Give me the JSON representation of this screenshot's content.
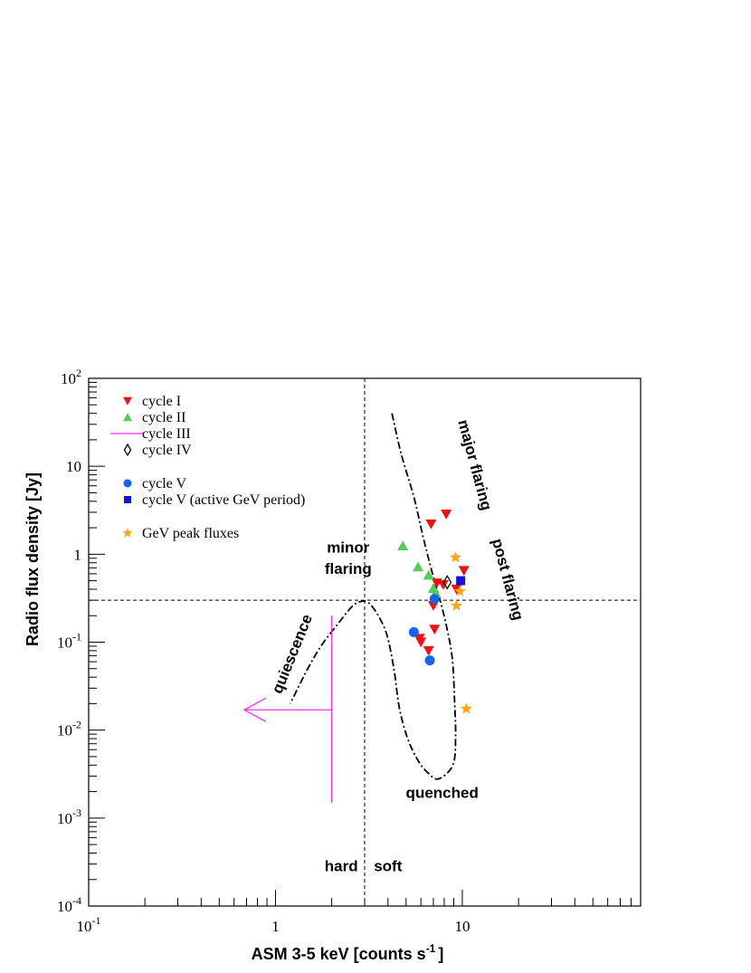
{
  "chart_data": {
    "type": "scatter",
    "xlabel": "ASM 3-5 keV [counts s",
    "xlabel_superscript": "-1",
    "xlabel_suffix": "]",
    "ylabel": "Radio flux density [Jy]",
    "x_scale": "log",
    "y_scale": "log",
    "xlim": [
      0.1,
      90
    ],
    "ylim": [
      0.0001,
      100
    ],
    "grid": false,
    "legend_position": "top-left",
    "x_ticks": [
      {
        "value": 0.1,
        "base": "10",
        "exp": "-1"
      },
      {
        "value": 1,
        "base": "1",
        "exp": ""
      },
      {
        "value": 10,
        "base": "10",
        "exp": ""
      }
    ],
    "y_ticks": [
      {
        "value": 0.0001,
        "base": "10",
        "exp": "-4"
      },
      {
        "value": 0.001,
        "base": "10",
        "exp": "-3"
      },
      {
        "value": 0.01,
        "base": "10",
        "exp": "-2"
      },
      {
        "value": 0.1,
        "base": "10",
        "exp": "-1"
      },
      {
        "value": 1,
        "base": "1",
        "exp": ""
      },
      {
        "value": 10,
        "base": "10",
        "exp": ""
      },
      {
        "value": 100,
        "base": "10",
        "exp": "2"
      }
    ],
    "reference_lines": {
      "x": 3.0,
      "y": 0.3
    },
    "series": [
      {
        "name": "cycle I",
        "marker": "triangle-down",
        "color": "#ee1111",
        "points": [
          [
            6.8,
            2.2
          ],
          [
            8.2,
            2.85
          ],
          [
            7.3,
            0.47
          ],
          [
            7.9,
            0.45
          ],
          [
            9.3,
            0.4
          ],
          [
            10.2,
            0.65
          ],
          [
            7.0,
            0.26
          ],
          [
            5.9,
            0.11
          ],
          [
            6.0,
            0.1
          ],
          [
            7.1,
            0.14
          ],
          [
            6.6,
            0.08
          ]
        ]
      },
      {
        "name": "cycle II",
        "marker": "triangle-up",
        "color": "#55cc55",
        "points": [
          [
            4.8,
            1.25
          ],
          [
            5.8,
            0.72
          ],
          [
            6.6,
            0.58
          ],
          [
            7.0,
            0.41
          ],
          [
            7.2,
            0.36
          ]
        ]
      },
      {
        "name": "cycle III",
        "marker": "limit-arrows",
        "color": "#ee33ee",
        "points": [
          [
            2.0,
            0.017
          ]
        ],
        "x_extent": [
          0.68,
          2.0
        ],
        "y_extent": [
          0.0015,
          0.2
        ]
      },
      {
        "name": "cycle IV",
        "marker": "diamond-open",
        "color": "#000000",
        "points": [
          [
            8.3,
            0.48
          ]
        ]
      },
      {
        "name": "cycle V",
        "marker": "circle",
        "color": "#1166ee",
        "points": [
          [
            7.1,
            0.31
          ],
          [
            5.5,
            0.13
          ],
          [
            6.7,
            0.062
          ]
        ]
      },
      {
        "name": "cycle V (active GeV period)",
        "marker": "square",
        "color": "#1111dd",
        "points": [
          [
            9.8,
            0.5
          ]
        ]
      },
      {
        "name": "GeV peak fluxes",
        "marker": "star",
        "color": "#ffa31a",
        "points": [
          [
            9.2,
            0.92
          ],
          [
            9.7,
            0.38
          ],
          [
            9.3,
            0.26
          ],
          [
            10.5,
            0.0175
          ]
        ]
      }
    ],
    "track": {
      "style": "dash-dot",
      "points": [
        [
          4.2,
          40
        ],
        [
          4.7,
          14
        ],
        [
          5.5,
          4.5
        ],
        [
          6.2,
          1.5
        ],
        [
          7.0,
          0.55
        ],
        [
          7.9,
          0.22
        ],
        [
          8.8,
          0.07
        ],
        [
          9.1,
          0.02
        ],
        [
          9.2,
          0.008
        ],
        [
          8.9,
          0.004
        ],
        [
          7.5,
          0.0028
        ],
        [
          6.6,
          0.0032
        ],
        [
          5.8,
          0.0045
        ],
        [
          5.1,
          0.008
        ],
        [
          4.6,
          0.018
        ],
        [
          4.3,
          0.05
        ],
        [
          3.95,
          0.12
        ],
        [
          3.55,
          0.2
        ],
        [
          3.15,
          0.28
        ],
        [
          2.85,
          0.29
        ],
        [
          2.55,
          0.25
        ],
        [
          2.15,
          0.16
        ],
        [
          1.75,
          0.09
        ],
        [
          1.45,
          0.045
        ],
        [
          1.2,
          0.02
        ]
      ]
    },
    "region_labels": [
      {
        "text": "major flaring",
        "x": 11.0,
        "y": 10,
        "rotate": 75
      },
      {
        "text": "post flaring",
        "x": 16.5,
        "y": 0.5,
        "rotate": 75
      },
      {
        "text": "minor",
        "x": 2.45,
        "y": 1.05,
        "rotate": 0
      },
      {
        "text": "flaring",
        "x": 2.45,
        "y": 0.6,
        "rotate": 0
      },
      {
        "text": "quiescence",
        "x": 1.3,
        "y": 0.07,
        "rotate": -68
      },
      {
        "text": "quenched",
        "x": 7.8,
        "y": 0.0017,
        "rotate": 0
      },
      {
        "text": "hard",
        "x": 2.25,
        "y": 0.00025,
        "rotate": 0
      },
      {
        "text": "soft",
        "x": 4.0,
        "y": 0.00025,
        "rotate": 0
      }
    ]
  }
}
